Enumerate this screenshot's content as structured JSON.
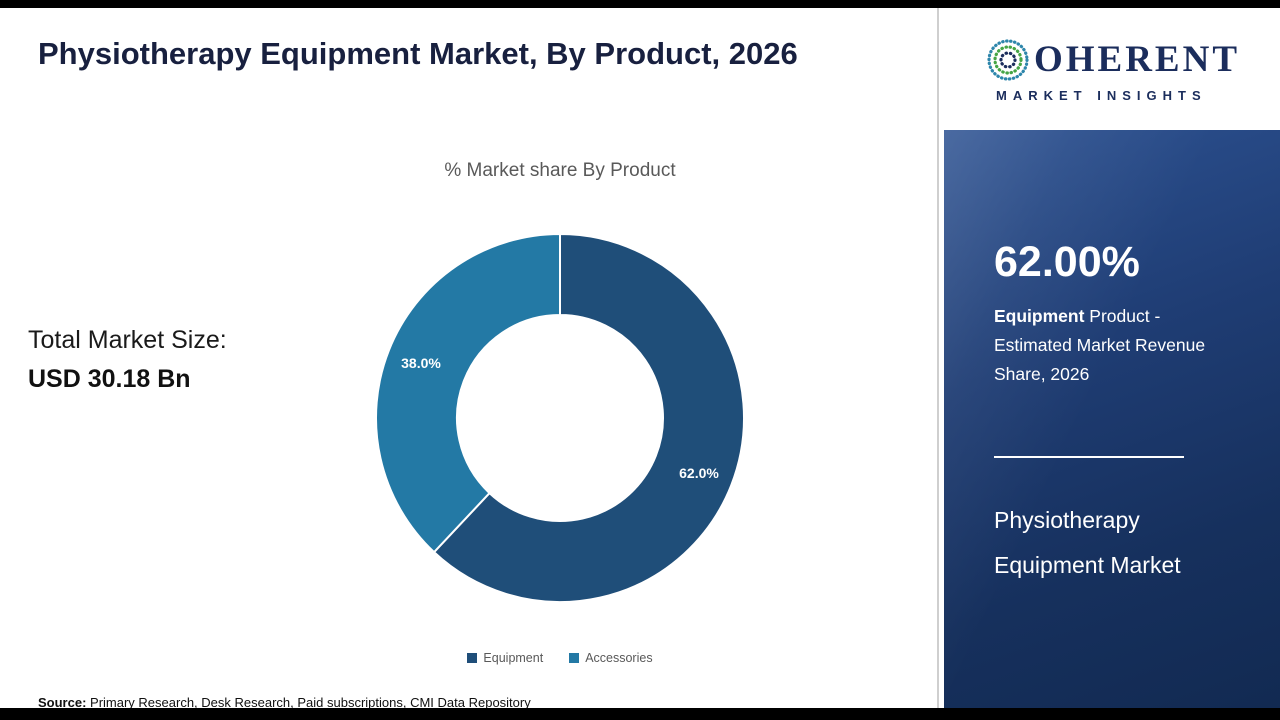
{
  "page": {
    "title": "Physiotherapy Equipment Market, By Product, 2026"
  },
  "logo": {
    "brand_initial": "C",
    "brand_rest": "OHERENT",
    "tagline": "MARKET INSIGHTS"
  },
  "main": {
    "total_market_label": "Total Market Size:",
    "total_market_value": "USD 30.18 Bn",
    "source_label": "Source:",
    "source_text": " Primary Research, Desk Research, Paid subscriptions, CMI Data Repository"
  },
  "chart_data": {
    "type": "pie",
    "variant": "donut",
    "title": "% Market share By Product",
    "categories": [
      "Equipment",
      "Accessories"
    ],
    "values": [
      62.0,
      38.0
    ],
    "data_labels": [
      "62.0%",
      "38.0%"
    ],
    "colors": [
      "#1F4E79",
      "#2379A5"
    ],
    "start_angle_deg": 0,
    "direction": "clockwise",
    "legend_position": "bottom",
    "inner_radius_ratio": 0.56
  },
  "sidebar": {
    "stat_value": "62.00%",
    "stat_desc_bold": "Equipment",
    "stat_desc_rest": " Product - Estimated Market Revenue Share, 2026",
    "panel_title": "Physiotherapy Equipment Market"
  }
}
